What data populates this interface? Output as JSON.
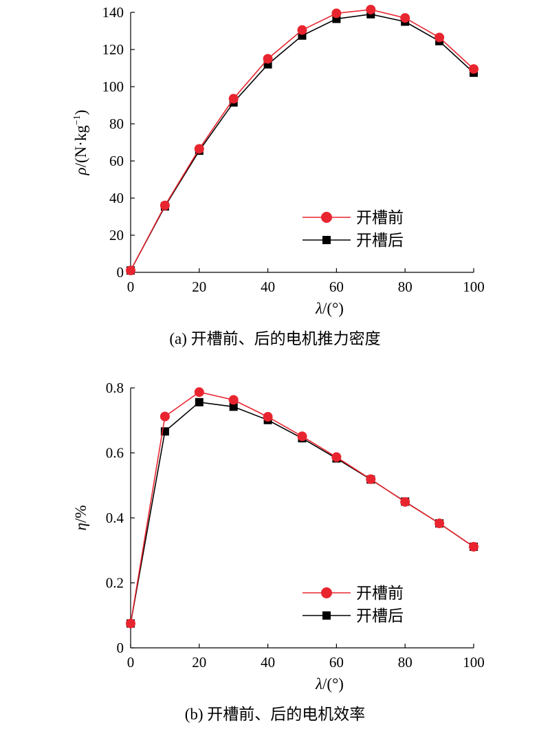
{
  "colors": {
    "before": "#e8252f",
    "after": "#000000",
    "before_line": "#e8252f",
    "after_line": "#000000"
  },
  "chart_data": [
    {
      "type": "line",
      "caption": "(a) 开槽前、后的电机推力密度",
      "xlabel": {
        "symbol": "λ",
        "unit": "/(°)"
      },
      "ylabel": {
        "symbol": "ρ",
        "unit": "/(N·kg",
        "sup": "−1",
        "close": ")"
      },
      "xlim": [
        0,
        100
      ],
      "ylim": [
        0,
        140
      ],
      "xticks": [
        0,
        20,
        40,
        60,
        80,
        100
      ],
      "yticks": [
        0,
        20,
        40,
        60,
        80,
        100,
        120,
        140
      ],
      "x": [
        0,
        10,
        20,
        30,
        40,
        50,
        60,
        70,
        80,
        90,
        100
      ],
      "legend_position": "bottom-right",
      "series": [
        {
          "name": "开槽前",
          "marker": "circle",
          "values": [
            1,
            36,
            66.5,
            93.5,
            115,
            130.5,
            139.5,
            141.5,
            137,
            126.5,
            109.5
          ]
        },
        {
          "name": "开槽后",
          "marker": "square",
          "values": [
            1,
            35.5,
            65.5,
            91.5,
            112,
            127.5,
            136.5,
            139,
            135,
            124.5,
            107.5
          ]
        }
      ]
    },
    {
      "type": "line",
      "caption": "(b) 开槽前、后的电机效率",
      "xlabel": {
        "symbol": "λ",
        "unit": "/(°)"
      },
      "ylabel": {
        "symbol": "η",
        "unit": "/%",
        "sup": "",
        "close": ""
      },
      "xlim": [
        0,
        100
      ],
      "ylim": [
        0,
        0.8
      ],
      "xticks": [
        0,
        20,
        40,
        60,
        80,
        100
      ],
      "yticks": [
        0,
        0.2,
        0.4,
        0.6,
        0.8
      ],
      "x": [
        0,
        10,
        20,
        30,
        40,
        50,
        60,
        70,
        80,
        90,
        100
      ],
      "legend_position": "bottom-right",
      "series": [
        {
          "name": "开槽前",
          "marker": "circle",
          "values": [
            0.075,
            0.712,
            0.787,
            0.763,
            0.711,
            0.651,
            0.587,
            0.519,
            0.449,
            0.383,
            0.311
          ]
        },
        {
          "name": "开槽后",
          "marker": "square",
          "values": [
            0.075,
            0.666,
            0.756,
            0.742,
            0.701,
            0.645,
            0.583,
            0.518,
            0.45,
            0.383,
            0.311
          ]
        }
      ]
    }
  ]
}
